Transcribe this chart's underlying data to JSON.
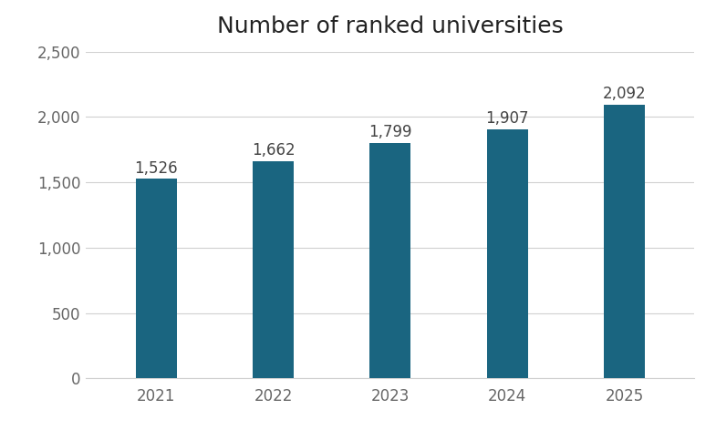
{
  "title": "Number of ranked universities",
  "categories": [
    "2021",
    "2022",
    "2023",
    "2024",
    "2025"
  ],
  "values": [
    1526,
    1662,
    1799,
    1907,
    2092
  ],
  "bar_color": "#1a6580",
  "ylim": [
    0,
    2500
  ],
  "yticks": [
    0,
    500,
    1000,
    1500,
    2000,
    2500
  ],
  "title_fontsize": 18,
  "tick_fontsize": 12,
  "label_fontsize": 12,
  "background_color": "#ffffff",
  "grid_color": "#d0d0d0",
  "bar_width": 0.35
}
